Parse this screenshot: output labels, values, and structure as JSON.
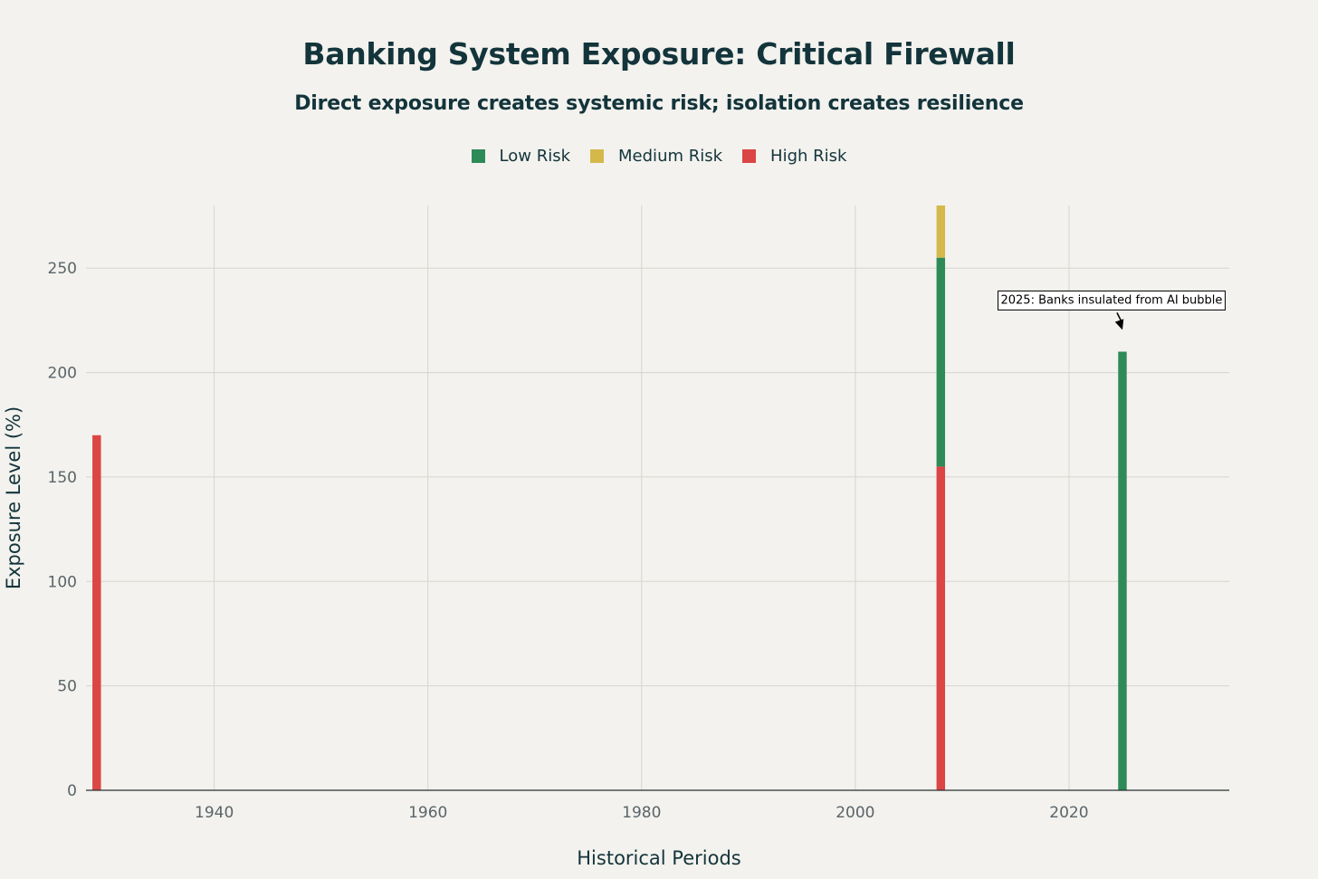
{
  "title": "Banking System Exposure: Critical Firewall",
  "subtitle": "Direct exposure creates systemic risk; isolation creates resilience",
  "colors": {
    "background": "#f3f2ee",
    "low": "#2e8b57",
    "medium": "#d4b84a",
    "high": "#db4545",
    "grid": "#d6d5d0"
  },
  "legend": [
    {
      "label": "Low Risk",
      "color": "#2e8b57"
    },
    {
      "label": "Medium Risk",
      "color": "#d4b84a"
    },
    {
      "label": "High Risk",
      "color": "#db4545"
    }
  ],
  "chart_data": {
    "type": "bar",
    "stacked": true,
    "xlabel": "Historical Periods",
    "ylabel": "Exposure Level (%)",
    "xlim": [
      1928,
      2035
    ],
    "ylim": [
      0,
      280
    ],
    "x_ticks": [
      1940,
      1960,
      1980,
      2000,
      2020
    ],
    "y_ticks": [
      0,
      50,
      100,
      150,
      200,
      250
    ],
    "bar_width_years": 0.8,
    "grid": true,
    "legend_position": "top-center",
    "bars": [
      {
        "x": 1929,
        "segments": [
          {
            "series": "High Risk",
            "value": 170
          }
        ]
      },
      {
        "x": 2008,
        "segments": [
          {
            "series": "High Risk",
            "value": 155
          },
          {
            "series": "Low Risk",
            "value": 100
          },
          {
            "series": "Medium Risk",
            "value": 25
          }
        ]
      },
      {
        "x": 2025,
        "segments": [
          {
            "series": "Low Risk",
            "value": 210
          }
        ]
      }
    ],
    "annotations": [
      {
        "text": "2025: Banks insulated from AI bubble",
        "x": 2025,
        "y": 220
      }
    ]
  }
}
